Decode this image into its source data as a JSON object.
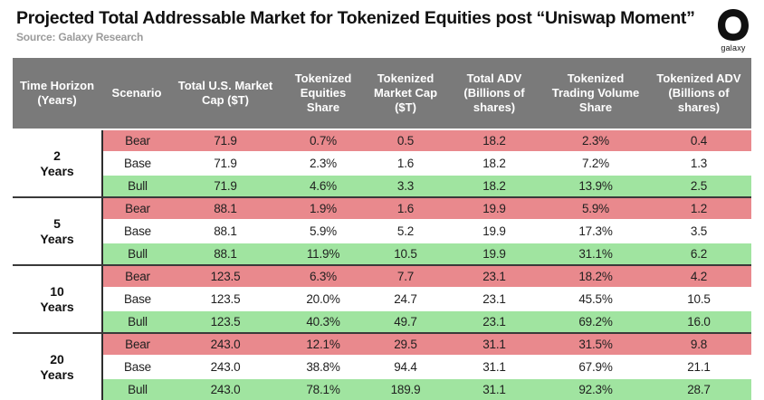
{
  "page": {
    "title": "Projected Total Addressable Market for Tokenized Equities post “Uniswap Moment”",
    "source": "Source: Galaxy Research",
    "logo_text": "galaxy"
  },
  "colors": {
    "header_bg": "#7a7a7a",
    "header_text": "#ffffff",
    "bear_bg": "#e9898d",
    "base_bg": "#ffffff",
    "bull_bg": "#a0e4a0",
    "separator": "#3a3a3a",
    "logo": "#111111"
  },
  "chart_data": {
    "type": "table",
    "title": "Projected Total Addressable Market for Tokenized Equities post “Uniswap Moment”",
    "source": "Source: Galaxy Research",
    "columns": [
      "Time Horizon (Years)",
      "Scenario",
      "Total U.S. Market Cap ($T)",
      "Tokenized Equities Share",
      "Tokenized Market Cap ($T)",
      "Total ADV (Billions of shares)",
      "Tokenized Trading Volume Share",
      "Tokenized ADV (Billions of shares)"
    ],
    "scenario_colors": {
      "Bear": "#e9898d",
      "Base": "#ffffff",
      "Bull": "#a0e4a0"
    },
    "groups": [
      {
        "time_horizon": "2 Years",
        "rows": [
          {
            "scenario": "Bear",
            "values": [
              "71.9",
              "0.7%",
              "0.5",
              "18.2",
              "2.3%",
              "0.4"
            ]
          },
          {
            "scenario": "Base",
            "values": [
              "71.9",
              "2.3%",
              "1.6",
              "18.2",
              "7.2%",
              "1.3"
            ]
          },
          {
            "scenario": "Bull",
            "values": [
              "71.9",
              "4.6%",
              "3.3",
              "18.2",
              "13.9%",
              "2.5"
            ]
          }
        ]
      },
      {
        "time_horizon": "5 Years",
        "rows": [
          {
            "scenario": "Bear",
            "values": [
              "88.1",
              "1.9%",
              "1.6",
              "19.9",
              "5.9%",
              "1.2"
            ]
          },
          {
            "scenario": "Base",
            "values": [
              "88.1",
              "5.9%",
              "5.2",
              "19.9",
              "17.3%",
              "3.5"
            ]
          },
          {
            "scenario": "Bull",
            "values": [
              "88.1",
              "11.9%",
              "10.5",
              "19.9",
              "31.1%",
              "6.2"
            ]
          }
        ]
      },
      {
        "time_horizon": "10 Years",
        "rows": [
          {
            "scenario": "Bear",
            "values": [
              "123.5",
              "6.3%",
              "7.7",
              "23.1",
              "18.2%",
              "4.2"
            ]
          },
          {
            "scenario": "Base",
            "values": [
              "123.5",
              "20.0%",
              "24.7",
              "23.1",
              "45.5%",
              "10.5"
            ]
          },
          {
            "scenario": "Bull",
            "values": [
              "123.5",
              "40.3%",
              "49.7",
              "23.1",
              "69.2%",
              "16.0"
            ]
          }
        ]
      },
      {
        "time_horizon": "20 Years",
        "rows": [
          {
            "scenario": "Bear",
            "values": [
              "243.0",
              "12.1%",
              "29.5",
              "31.1",
              "31.5%",
              "9.8"
            ]
          },
          {
            "scenario": "Base",
            "values": [
              "243.0",
              "38.8%",
              "94.4",
              "31.1",
              "67.9%",
              "21.1"
            ]
          },
          {
            "scenario": "Bull",
            "values": [
              "243.0",
              "78.1%",
              "189.9",
              "31.1",
              "92.3%",
              "28.7"
            ]
          }
        ]
      }
    ]
  }
}
